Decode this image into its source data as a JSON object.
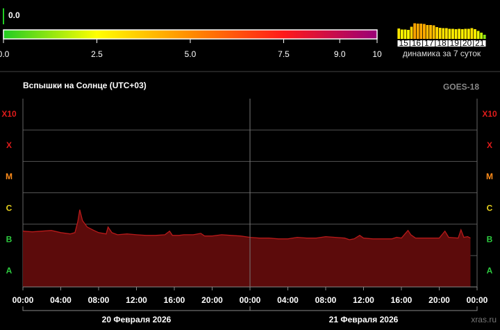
{
  "chart_data": [
    {
      "type": "colorbar",
      "value": 0,
      "value_label": "0.0",
      "xlim": [
        0,
        10
      ],
      "xticks": [
        {
          "value": 0,
          "label": "0.0"
        },
        {
          "value": 2.5,
          "label": "2.5"
        },
        {
          "value": 5,
          "label": "5.0"
        },
        {
          "value": 7.5,
          "label": "7.5"
        },
        {
          "value": 9,
          "label": "9.0"
        },
        10
      ],
      "colors": [
        "#22cc22",
        "#ffff00",
        "#ff8c00",
        "#ff1a1a",
        "#990077"
      ]
    },
    {
      "type": "bar",
      "caption": "динамика за 7 суток",
      "categories": [
        "15",
        null,
        null,
        null,
        "16",
        null,
        null,
        null,
        "17",
        null,
        null,
        null,
        "18",
        null,
        null,
        null,
        "19",
        null,
        null,
        null,
        "20",
        null,
        null,
        null,
        "21",
        null,
        null,
        null
      ],
      "values": [
        3,
        2.7,
        2.7,
        2.6,
        3.5,
        4.5,
        4.4,
        4.4,
        4.3,
        4,
        4,
        3.9,
        3.4,
        3.2,
        3.1,
        3.1,
        2.9,
        2.9,
        2.8,
        2.9,
        2.8,
        2.9,
        2.9,
        3.1,
        2.8,
        2.3,
        1.8,
        1.2
      ],
      "ylim": [
        0,
        5
      ]
    },
    {
      "type": "area",
      "title": "Вспышки на Солнце (UTC+03)",
      "source": "GOES-18",
      "credit": "xras.ru",
      "x": [
        0,
        1,
        2,
        3,
        4,
        5,
        5.5,
        5.8,
        6,
        6.3,
        6.8,
        7.5,
        8,
        8.8,
        9,
        9.4,
        10,
        11,
        12,
        13,
        14,
        15,
        15.5,
        15.8,
        16.5,
        17,
        18,
        18.8,
        19.2,
        20,
        21,
        22,
        23,
        24,
        25,
        26,
        27,
        28,
        29,
        30,
        31,
        32,
        33,
        34,
        34.5,
        35,
        35.6,
        36,
        37,
        38,
        39,
        39.5,
        40,
        40.7,
        41,
        41.5,
        42,
        43,
        44,
        44.6,
        45,
        46,
        46.3,
        46.6,
        47,
        47.3
      ],
      "values": [
        6e-07,
        5.7e-07,
        6e-07,
        6.3e-07,
        5.4e-07,
        4.9e-07,
        5.4e-07,
        1.2e-06,
        2.9e-06,
        1.3e-06,
        8.1e-07,
        6.3e-07,
        5.4e-07,
        4.9e-07,
        8.1e-07,
        5.4e-07,
        4.6e-07,
        4.9e-07,
        4.6e-07,
        4.4e-07,
        4.4e-07,
        4.6e-07,
        6e-07,
        4.4e-07,
        4.4e-07,
        4.6e-07,
        4.6e-07,
        5.1e-07,
        4.2e-07,
        4.2e-07,
        4.6e-07,
        4.4e-07,
        4.2e-07,
        3.8e-07,
        3.6e-07,
        3.6e-07,
        3.4e-07,
        3.4e-07,
        3.8e-07,
        3.6e-07,
        3.6e-07,
        4e-07,
        3.8e-07,
        3.6e-07,
        3.2e-07,
        3.4e-07,
        4.4e-07,
        3.6e-07,
        3.4e-07,
        3.4e-07,
        3.4e-07,
        3.8e-07,
        3.6e-07,
        6.3e-07,
        4.6e-07,
        3.6e-07,
        3.6e-07,
        3.6e-07,
        3.6e-07,
        6e-07,
        3.8e-07,
        3.6e-07,
        6.6e-07,
        3.8e-07,
        4e-07,
        3.6e-07
      ],
      "xlim": [
        0,
        48
      ],
      "xticks": [
        {
          "value": 0,
          "label": "00:00"
        },
        {
          "value": 4,
          "label": "04:00"
        },
        {
          "value": 8,
          "label": "08:00"
        },
        {
          "value": 12,
          "label": "12:00"
        },
        {
          "value": 16,
          "label": "16:00"
        },
        {
          "value": 20,
          "label": "20:00"
        },
        {
          "value": 24,
          "label": "00:00"
        },
        {
          "value": 28,
          "label": "04:00"
        },
        {
          "value": 32,
          "label": "08:00"
        },
        {
          "value": 36,
          "label": "12:00"
        },
        {
          "value": 40,
          "label": "16:00"
        },
        {
          "value": 44,
          "label": "20:00"
        },
        {
          "value": 48,
          "label": "00:00"
        }
      ],
      "ylim": [
        1e-08,
        0.01
      ],
      "log_y": true,
      "yticks": [
        {
          "value": 1e-08,
          "label": "A"
        },
        {
          "value": 1e-07,
          "label": "B"
        },
        {
          "value": 1e-06,
          "label": "C"
        },
        {
          "value": 1e-05,
          "label": "M"
        },
        {
          "value": 0.0001,
          "label": "X"
        },
        {
          "value": 0.001,
          "label": "X10"
        }
      ],
      "ytick_colors": [
        "#2ecc40",
        "#2ecc40",
        "#e8d21d",
        "#ff8c1a",
        "#e01b1b",
        "#e01b1b"
      ],
      "days": [
        {
          "label": "20 Февраля 2026",
          "start": 0,
          "end": 24
        },
        {
          "label": "21 Февраля 2026",
          "start": 24,
          "end": 48
        }
      ],
      "color": "#b81a1a",
      "fill": "#5c0b0b",
      "grid": true
    }
  ]
}
